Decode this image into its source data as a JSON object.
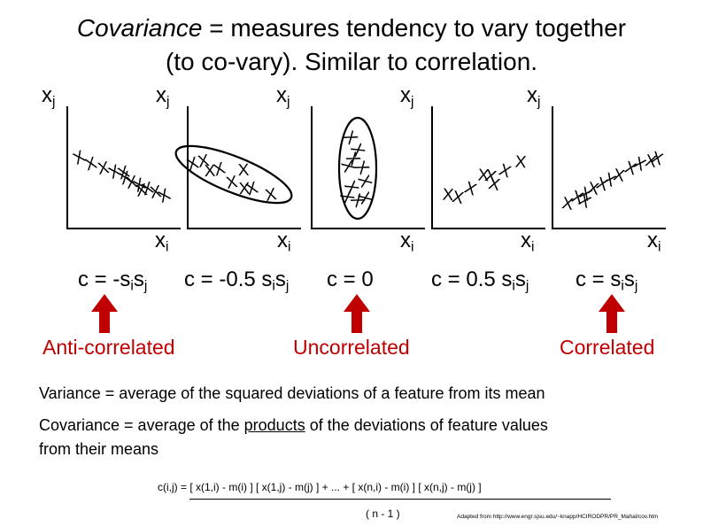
{
  "title": {
    "term": "Covariance",
    "line1_rest": " = measures tendency to vary together",
    "line2": "(to co-vary).  Similar to correlation."
  },
  "axis_symbols": {
    "y_base": "x",
    "y_sub": "j",
    "x_base": "x",
    "x_sub": "i"
  },
  "point_mark": "X",
  "plots": [
    {
      "covariance_label": [
        "c = -s",
        "i",
        "s",
        "j"
      ],
      "category": "Anti-correlated",
      "color": "#c00000"
    },
    {
      "covariance_label": [
        "c = -0.5 s",
        "i",
        "s",
        "j"
      ]
    },
    {
      "covariance_label": [
        "c = 0"
      ],
      "category": "Uncorrelated",
      "color": "#c00000"
    },
    {
      "covariance_label": [
        "c = 0.5 s",
        "i",
        "s",
        "j"
      ]
    },
    {
      "covariance_label": [
        "c = s",
        "i",
        "s",
        "j"
      ],
      "category": "Correlated",
      "color": "#c00000"
    }
  ],
  "definitions": {
    "variance_term": "Variance",
    "variance_text": " = average of the squared deviations of a feature from its mean",
    "covariance_term": "Covariance",
    "covariance_text_a": " = average of the ",
    "covariance_products": "products",
    "covariance_text_b": " of the deviations of feature values",
    "covariance_line2": "from their means"
  },
  "formula": {
    "numerator": "c(i,j) = [ x(1,i) - m(i) ] [ x(1,j) - m(j) ] + ... + [ x(n,i) - m(i) ] [ x(n,j) - m(j) ]",
    "denominator": "( n - 1 )"
  },
  "credit": "Adapted from http://www.engr.sjsu.edu/~knapp/HCIRODPR/PR_Mahal/cov.htm"
}
